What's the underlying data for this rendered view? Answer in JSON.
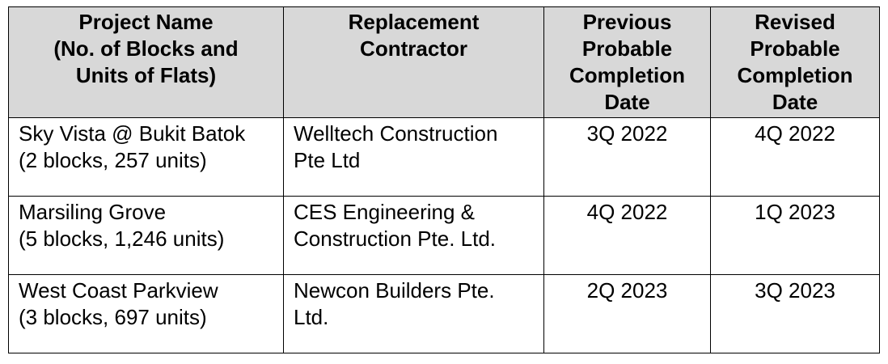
{
  "table": {
    "headers": [
      "Project Name (No. of Blocks and Units of Flats)",
      "Replacement Contractor",
      "Previous Probable Completion Date",
      "Revised Probable Completion Date"
    ],
    "header_lines": [
      [
        "Project Name",
        "(No. of Blocks and",
        "Units of Flats)"
      ],
      [
        "Replacement",
        "Contractor"
      ],
      [
        "Previous",
        "Probable",
        "Completion",
        "Date"
      ],
      [
        "Revised",
        "Probable",
        "Completion",
        "Date"
      ]
    ],
    "rows": [
      {
        "project_name": "Sky Vista @ Bukit Batok",
        "blocks_units": "(2 blocks, 257 units)",
        "contractor": "Welltech Construction Pte Ltd",
        "previous_date": "3Q 2022",
        "revised_date": "4Q 2022"
      },
      {
        "project_name": "Marsiling Grove",
        "blocks_units": "(5 blocks, 1,246 units)",
        "contractor": "CES Engineering & Construction Pte. Ltd.",
        "previous_date": "4Q 2022",
        "revised_date": "1Q 2023"
      },
      {
        "project_name": "West Coast Parkview",
        "blocks_units": "(3 blocks, 697 units)",
        "contractor": "Newcon Builders Pte. Ltd.",
        "previous_date": "2Q 2023",
        "revised_date": "3Q 2023"
      }
    ]
  }
}
